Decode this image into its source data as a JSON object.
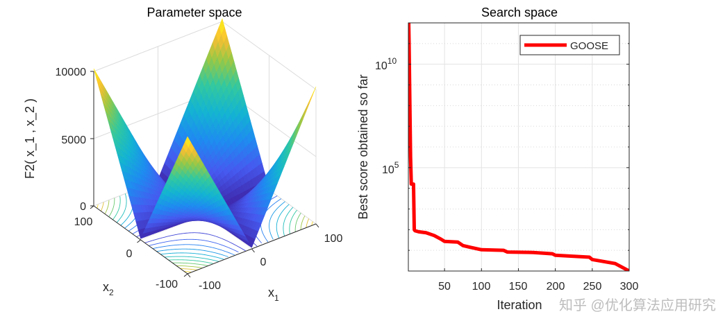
{
  "chart_data": [
    {
      "type": "surface",
      "title": "Parameter space",
      "xlabel": "x_1",
      "ylabel": "x_2",
      "zlabel": "F2( x_1 , x_2 )",
      "xlim": [
        -100,
        100
      ],
      "ylim": [
        -100,
        100
      ],
      "zlim": [
        0,
        10000
      ],
      "x_ticks": [
        "-100",
        "0",
        "100"
      ],
      "y_ticks": [
        "-100",
        "0",
        "100"
      ],
      "z_ticks": [
        "0",
        "5000",
        "10000"
      ],
      "colormap": "parula",
      "floor_contours": true,
      "grid": true
    },
    {
      "type": "line",
      "title": "Search space",
      "xlabel": "Iteration",
      "ylabel": "Best score obtained so far",
      "xlim": [
        1,
        300
      ],
      "ylim": [
        1,
        1000000000000.0
      ],
      "yscale": "log",
      "x_ticks": [
        "50",
        "100",
        "150",
        "200",
        "250",
        "300"
      ],
      "y_ticks": [
        {
          "base": "10",
          "exp": "5"
        },
        {
          "base": "10",
          "exp": "10"
        }
      ],
      "grid": true,
      "legend_position": "top-right",
      "series": [
        {
          "name": "GOOSE",
          "color": "#ff0000",
          "x": [
            1,
            2,
            3,
            4,
            5,
            6,
            8,
            9,
            10,
            15,
            25,
            36,
            45,
            50,
            68,
            75,
            85,
            100,
            130,
            135,
            170,
            196,
            200,
            246,
            250,
            281,
            300
          ],
          "y": [
            10000000000000.0,
            100000000000.0,
            160000000.0,
            320000.0,
            16000.0,
            16000.0,
            16000.0,
            100,
            89,
            79,
            71,
            52,
            35,
            27,
            25,
            17,
            14,
            10.7,
            10,
            8.3,
            7.9,
            6.8,
            5.8,
            4.7,
            3.6,
            2.3,
            1.0
          ]
        }
      ]
    }
  ],
  "watermark": "知乎 @优化算法应用研究"
}
